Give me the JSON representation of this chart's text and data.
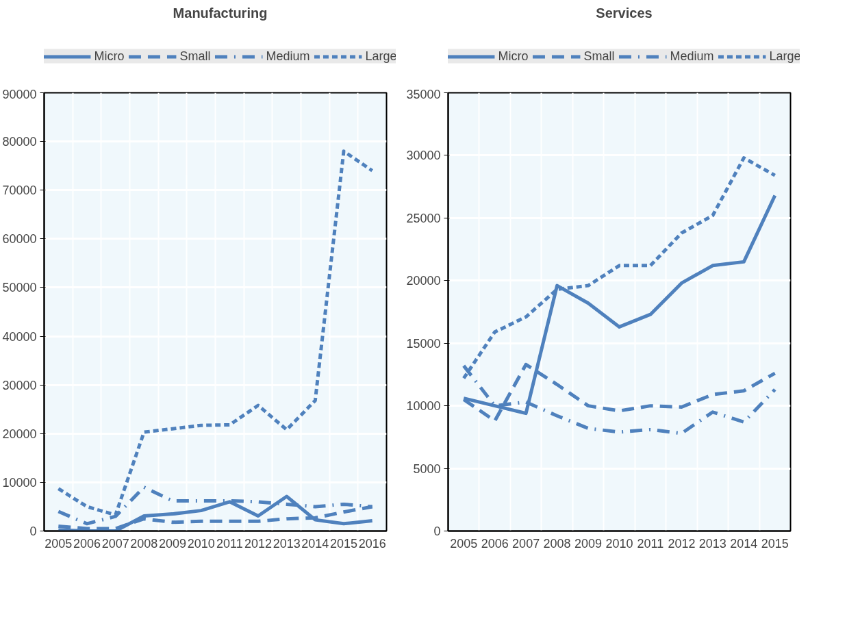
{
  "chart_data": [
    {
      "type": "line",
      "title": "Manufacturing",
      "categories": [
        "2005",
        "2006",
        "2007",
        "2008",
        "2009",
        "2010",
        "2011",
        "2012",
        "2013",
        "2014",
        "2015",
        "2016"
      ],
      "series": [
        {
          "name": "Micro",
          "color": "#4f81bd",
          "line_style": "solid",
          "values": [
            200,
            0,
            0,
            3100,
            3500,
            4200,
            6000,
            3100,
            7100,
            2300,
            1500,
            2100
          ]
        },
        {
          "name": "Small",
          "color": "#4f81bd",
          "line_style": "dashed",
          "values": [
            1000,
            500,
            500,
            2500,
            1800,
            2000,
            2000,
            2000,
            2500,
            2700,
            3900,
            5000
          ]
        },
        {
          "name": "Medium",
          "color": "#4f81bd",
          "line_style": "dashdot",
          "values": [
            4000,
            1500,
            3000,
            9000,
            6200,
            6200,
            6200,
            6000,
            5500,
            5000,
            5500,
            5000
          ]
        },
        {
          "name": "Large",
          "color": "#4f81bd",
          "line_style": "dotted",
          "values": [
            8700,
            5000,
            3300,
            20300,
            21000,
            21700,
            21800,
            25800,
            20800,
            26800,
            78000,
            74000
          ]
        }
      ],
      "ylim": [
        0,
        90000
      ],
      "yticks": [
        0,
        10000,
        20000,
        30000,
        40000,
        50000,
        60000,
        70000,
        80000,
        90000
      ],
      "grid": true,
      "legend": "top"
    },
    {
      "type": "line",
      "title": "Services",
      "categories": [
        "2005",
        "2006",
        "2007",
        "2008",
        "2009",
        "2010",
        "2011",
        "2012",
        "2013",
        "2014",
        "2015"
      ],
      "series": [
        {
          "name": "Micro",
          "color": "#4f81bd",
          "line_style": "solid",
          "values": [
            10600,
            10000,
            9400,
            19600,
            18200,
            16300,
            17300,
            19800,
            21200,
            21500,
            26800
          ]
        },
        {
          "name": "Small",
          "color": "#4f81bd",
          "line_style": "dashed",
          "values": [
            10500,
            8800,
            13300,
            11700,
            10000,
            9600,
            10000,
            9900,
            10900,
            11200,
            12600
          ]
        },
        {
          "name": "Medium",
          "color": "#4f81bd",
          "line_style": "dashdot",
          "values": [
            13200,
            10000,
            10300,
            9200,
            8200,
            7900,
            8100,
            7800,
            9500,
            8700,
            11300
          ]
        },
        {
          "name": "Large",
          "color": "#4f81bd",
          "line_style": "dotted",
          "values": [
            12200,
            15900,
            17100,
            19300,
            19600,
            21200,
            21200,
            23800,
            25200,
            29800,
            28400
          ]
        }
      ],
      "ylim": [
        0,
        35000
      ],
      "yticks": [
        0,
        5000,
        10000,
        15000,
        20000,
        25000,
        30000,
        35000
      ],
      "grid": true,
      "legend": "top"
    }
  ]
}
